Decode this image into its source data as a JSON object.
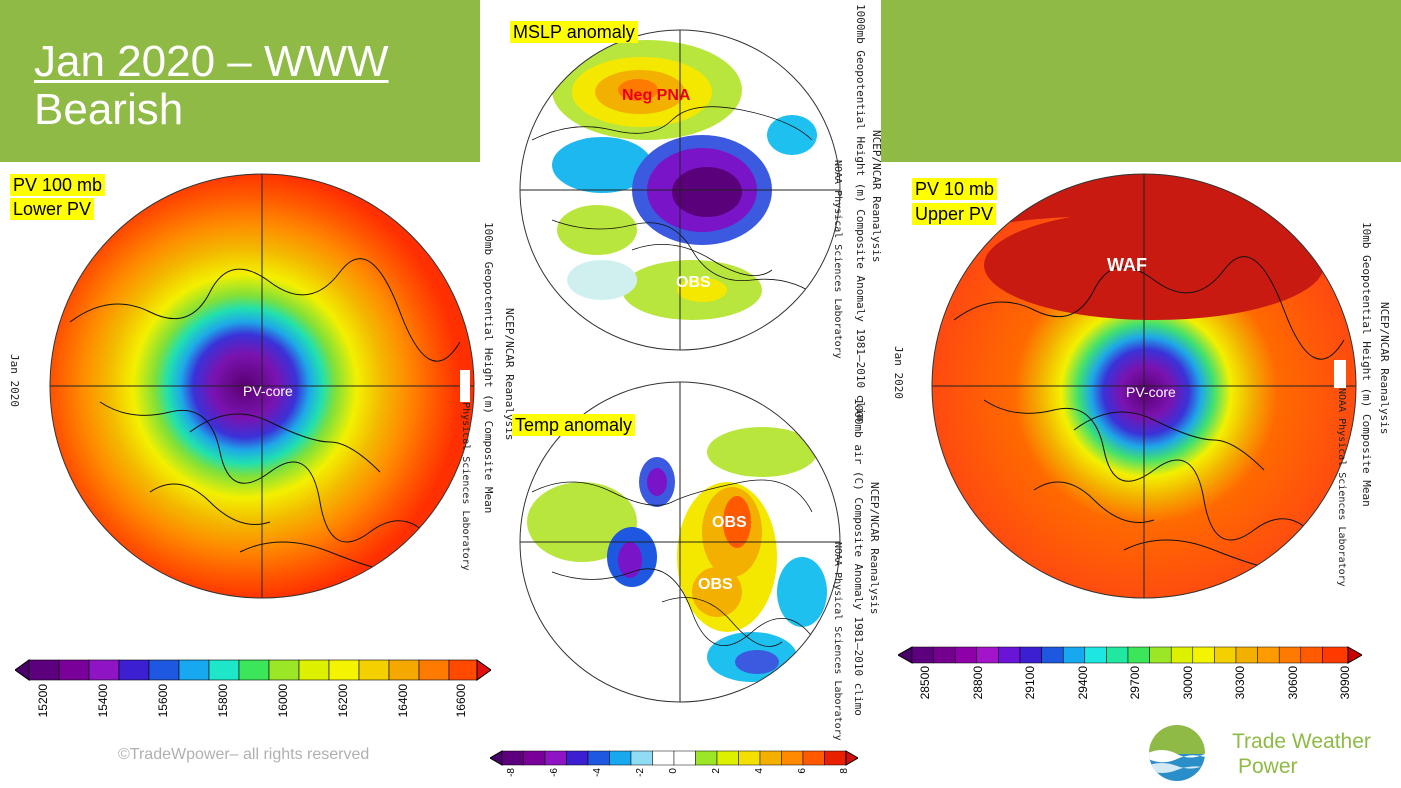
{
  "slide": {
    "title_line1": "Jan 2020 – WWW",
    "title_line2": "Bearish",
    "copyright": "©TradeWpower– all rights reserved",
    "brand_line1": "Trade Weather",
    "brand_line2": "Power",
    "colors": {
      "green": "#8fba45",
      "highlight": "#ffff00"
    }
  },
  "panels": {
    "pv100": {
      "label1": "PV 100 mb",
      "label2": "Lower PV",
      "core_label": "PV-core",
      "side_date": "Jan  2020",
      "side_title": "100mb  Geopotential  Height  (m)  Composite  Mean",
      "side_source": "NCEP/NCAR  Reanalysis",
      "side_lab": "NOAA  Physical  Sciences  Laboratory",
      "colorbar_labels": [
        "15200",
        "15400",
        "15600",
        "15800",
        "16000",
        "16200",
        "16400",
        "16600"
      ]
    },
    "mslp": {
      "label": "MSLP anomaly",
      "neg_pna": "Neg PNA",
      "obs": "OBS",
      "side_title": "1000mb  Geopotential  Height  (m)  Composite  Anomaly  1981–2010  clim",
      "side_source": "NCEP/NCAR  Reanalysis",
      "side_lab": "NOAA  Physical  Sciences  Laboratory"
    },
    "temp": {
      "label": "Temp anomaly",
      "obs1": "OBS",
      "obs2": "OBS",
      "side_title": "1000mb  air  (C)  Composite  Anomaly  1981–2010  climo",
      "side_source": "NCEP/NCAR  Reanalysis",
      "side_lab": "NOAA  Physical  Sciences  Laboratory",
      "colorbar_labels": [
        "-8",
        "-6",
        "-4",
        "-2",
        "0",
        "2",
        "4",
        "6",
        "8"
      ]
    },
    "pv10": {
      "label1": "PV 10 mb",
      "label2": "Upper PV",
      "waf": "WAF",
      "core_label": "PV-core",
      "side_date": "Jan  2020",
      "side_title": "10mb  Geopotential  Height  (m)  Composite  Mean",
      "side_source": "NCEP/NCAR  Reanalysis",
      "side_lab": "NOAA  Physical  Sciences  Laboratory",
      "colorbar_labels": [
        "28500",
        "28800",
        "29100",
        "29400",
        "29700",
        "30000",
        "30300",
        "30600",
        "30900"
      ]
    }
  }
}
